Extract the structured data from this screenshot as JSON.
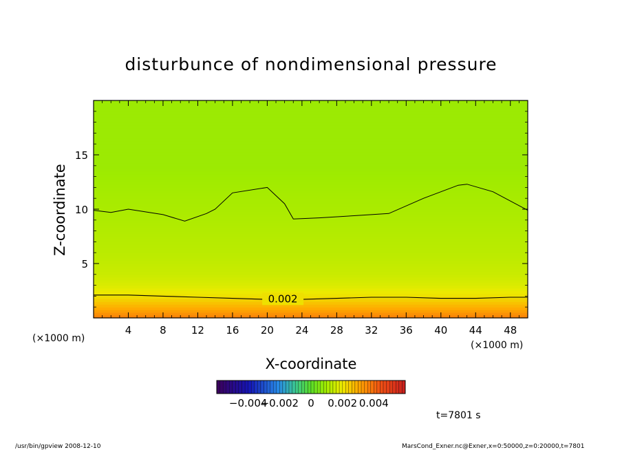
{
  "chart_data": {
    "type": "heatmap",
    "title": "disturbunce of nondimensional pressure",
    "xlabel": "X-coordinate",
    "ylabel": "Z-coordinate",
    "x_unit": "(×1000 m)",
    "y_unit": "(×1000 m)",
    "xlim": [
      0,
      50
    ],
    "ylim": [
      0,
      20
    ],
    "x_ticks": [
      4,
      8,
      12,
      16,
      20,
      24,
      28,
      32,
      36,
      40,
      44,
      48
    ],
    "y_ticks": [
      5,
      10,
      15
    ],
    "contour_label": "0.002",
    "colorbar": {
      "min": -0.006,
      "max": 0.006,
      "tick_labels": [
        "−0.004",
        "−0.002",
        "0",
        "0.002",
        "0.004"
      ],
      "tick_values": [
        -0.004,
        -0.002,
        0,
        0.002,
        0.004
      ]
    },
    "field_values_by_height": {
      "z_km": [
        0,
        0.5,
        1,
        1.5,
        2,
        2.5,
        3,
        4,
        6,
        8,
        10,
        12,
        14,
        16,
        18,
        20
      ],
      "value": [
        0.0037,
        0.0033,
        0.0029,
        0.0025,
        0.0021,
        0.0019,
        0.0017,
        0.0015,
        0.0013,
        0.0012,
        0.0011,
        0.001,
        0.0009,
        0.0009,
        0.0009,
        0.0009
      ]
    },
    "contour_0_002_z_km": {
      "x": [
        0,
        4,
        8,
        12,
        16,
        20,
        24,
        28,
        32,
        36,
        40,
        44,
        48,
        50
      ],
      "z": [
        2.1,
        2.1,
        2.0,
        1.9,
        1.8,
        1.7,
        1.7,
        1.8,
        1.9,
        1.9,
        1.8,
        1.8,
        1.9,
        1.9
      ]
    },
    "contour_0_001_z_km": {
      "x": [
        0,
        2,
        4,
        8,
        10.5,
        13,
        14,
        16,
        20,
        22,
        23,
        26,
        30,
        34,
        38,
        42,
        43,
        46,
        50
      ],
      "z": [
        9.9,
        9.7,
        10.0,
        9.5,
        8.9,
        9.6,
        10.0,
        11.5,
        12.0,
        10.5,
        9.1,
        9.2,
        9.4,
        9.6,
        11.0,
        12.2,
        12.3,
        11.6,
        9.9
      ]
    },
    "time_label": "t=7801 s"
  },
  "footer": {
    "left": "/usr/bin/gpview   2008-12-10",
    "right": "MarsCond_Exner.nc@Exner,x=0:50000,z=0:20000,t=7801"
  }
}
